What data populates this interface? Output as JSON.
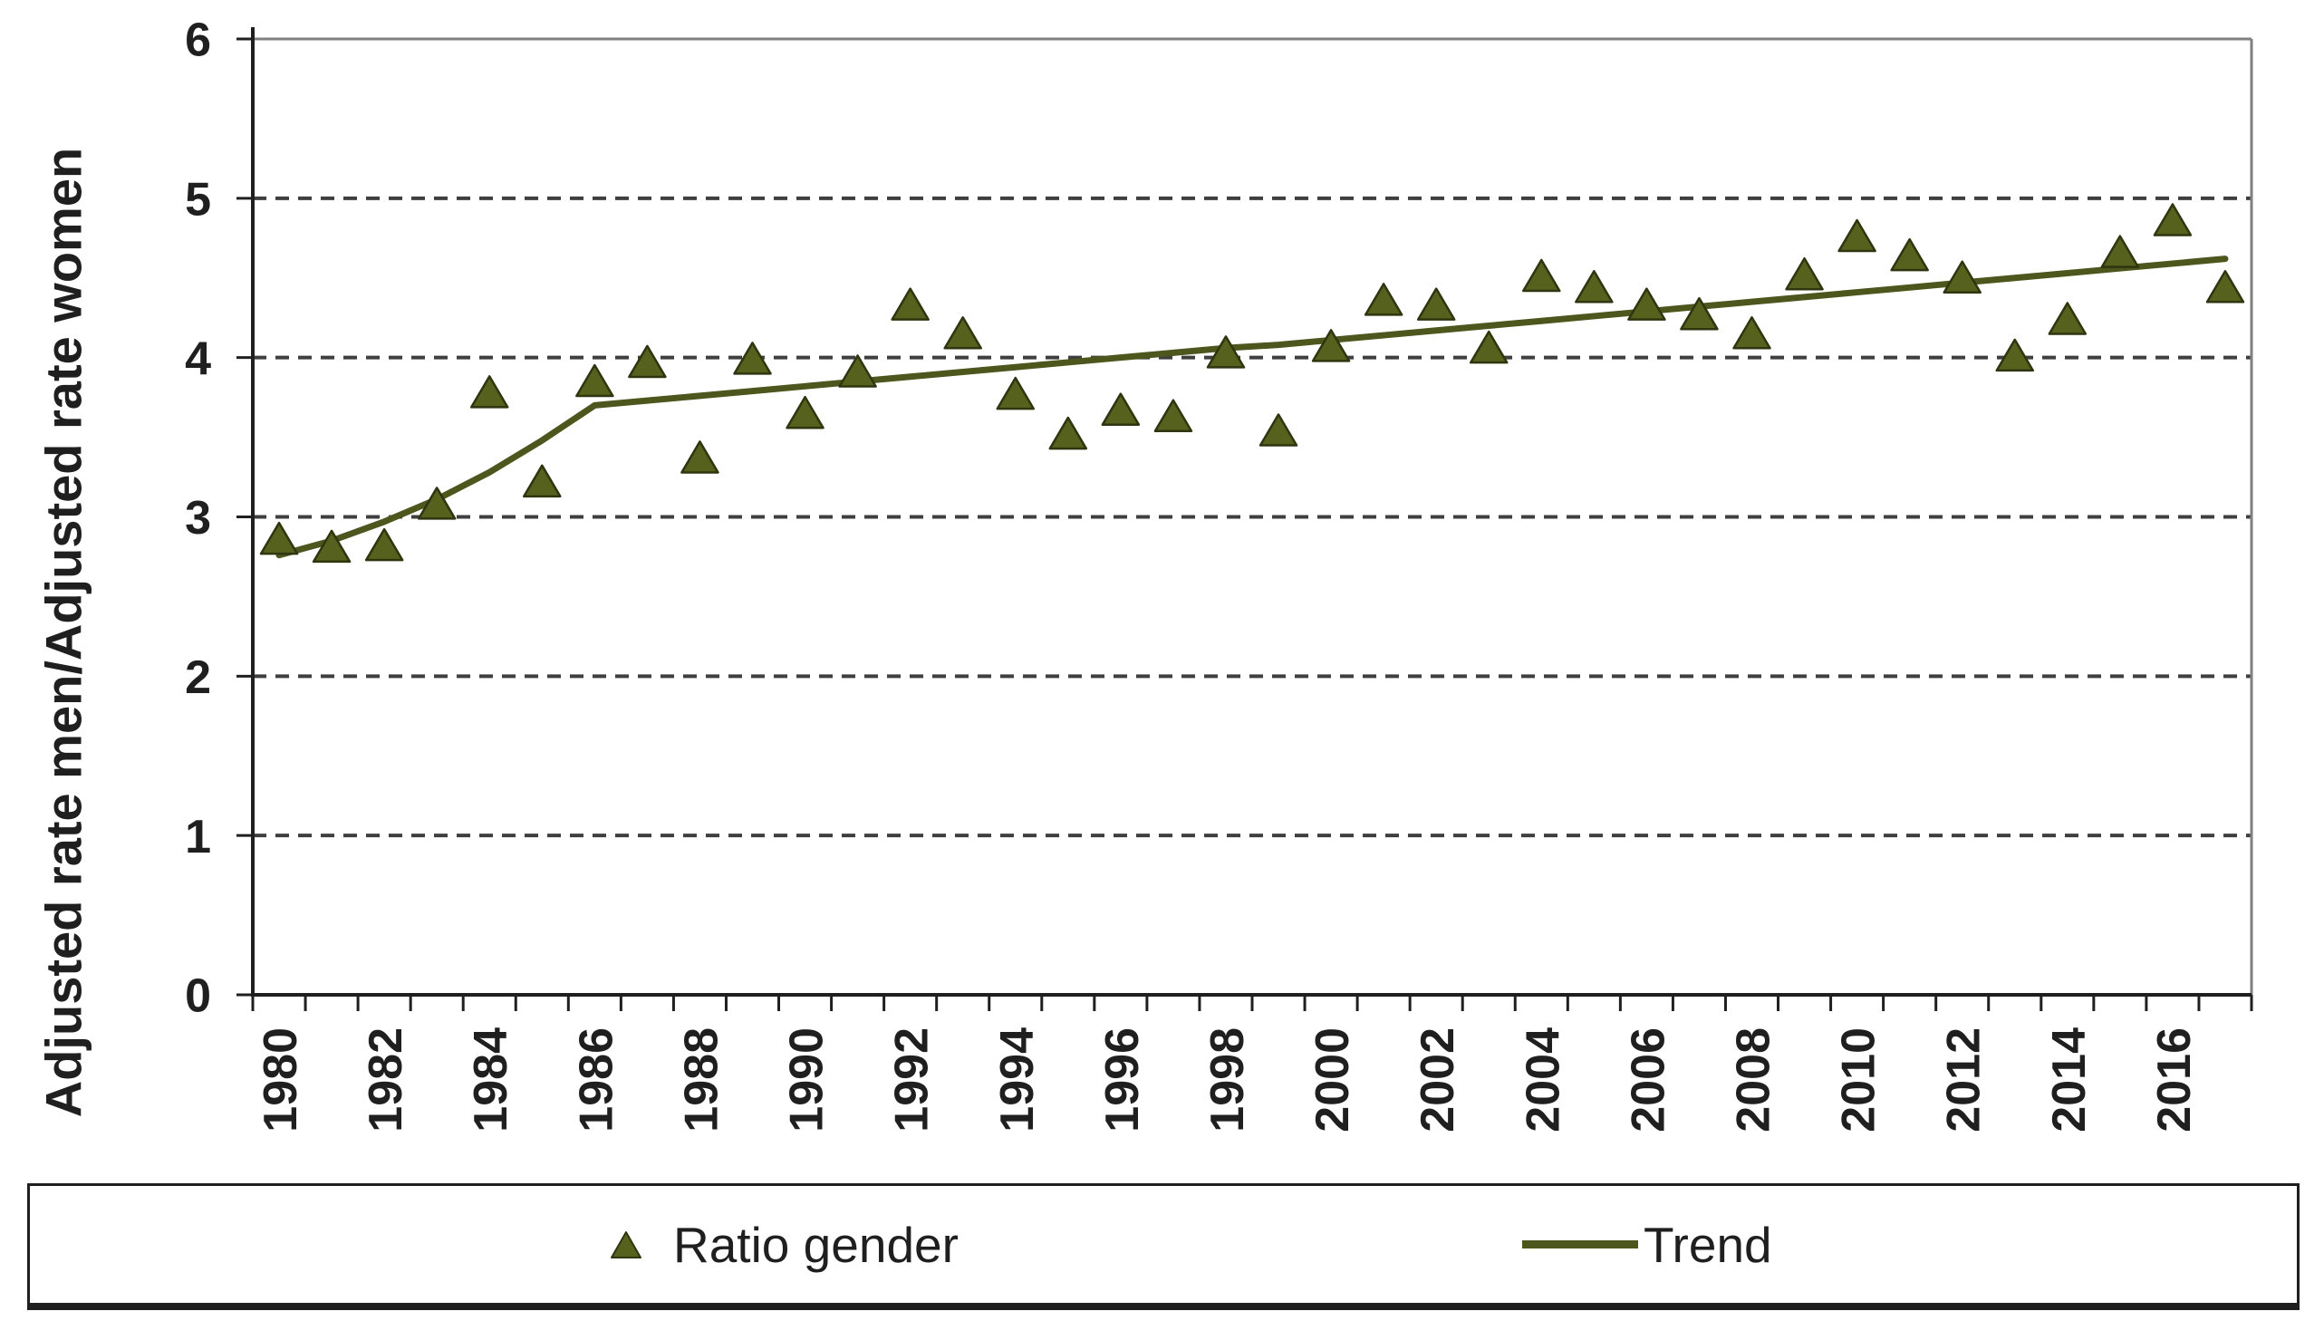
{
  "chart_data": {
    "type": "scatter",
    "title": "",
    "xlabel": "",
    "ylabel": "Adjusted rate men/Adjusted rate women",
    "ylim": [
      0,
      6
    ],
    "y_ticks": [
      0,
      1,
      2,
      3,
      4,
      5,
      6
    ],
    "grid": "horizontal-dashed-at-1-to-5",
    "legend_position": "bottom-box",
    "x": [
      1980,
      1981,
      1982,
      1983,
      1984,
      1985,
      1986,
      1987,
      1988,
      1989,
      1990,
      1991,
      1992,
      1993,
      1994,
      1995,
      1996,
      1997,
      1998,
      1999,
      2000,
      2001,
      2002,
      2003,
      2004,
      2005,
      2006,
      2007,
      2008,
      2009,
      2010,
      2011,
      2012,
      2013,
      2014,
      2015,
      2016,
      2017
    ],
    "x_tick_labels_shown": [
      "1980",
      "1982",
      "1984",
      "1986",
      "1988",
      "1990",
      "1992",
      "1994",
      "1996",
      "1998",
      "2000",
      "2002",
      "2004",
      "2006",
      "2008",
      "2010",
      "2012",
      "2014",
      "2016"
    ],
    "series": [
      {
        "name": "Ratio gender",
        "type": "scatter",
        "marker": "triangle",
        "color": "#57611e",
        "values": [
          2.86,
          2.81,
          2.82,
          3.08,
          3.78,
          3.22,
          3.85,
          3.97,
          3.37,
          3.99,
          3.65,
          3.91,
          4.33,
          4.15,
          3.77,
          3.52,
          3.67,
          3.63,
          4.03,
          3.54,
          4.07,
          4.36,
          4.33,
          4.06,
          4.51,
          4.44,
          4.33,
          4.27,
          4.15,
          4.52,
          4.76,
          4.64,
          4.5,
          4.01,
          4.24,
          4.66,
          4.86,
          4.44
        ]
      },
      {
        "name": "Trend",
        "type": "line",
        "marker": "none",
        "color": "#4c561d",
        "values": [
          2.76,
          2.85,
          2.97,
          3.11,
          3.28,
          3.48,
          3.7,
          3.73,
          3.76,
          3.79,
          3.82,
          3.85,
          3.88,
          3.91,
          3.94,
          3.97,
          4.0,
          4.03,
          4.06,
          4.08,
          4.11,
          4.14,
          4.17,
          4.2,
          4.23,
          4.26,
          4.29,
          4.32,
          4.35,
          4.38,
          4.41,
          4.44,
          4.47,
          4.5,
          4.53,
          4.56,
          4.59,
          4.62
        ]
      }
    ]
  },
  "colors": {
    "marker_fill": "#57611e",
    "marker_stroke": "#2e350f",
    "trend_line": "#4c561d",
    "axis": "#1f1f1f",
    "gridline": "#3f3f3f",
    "plot_border": "#808080",
    "text": "#1f1f1f",
    "background": "#ffffff"
  },
  "legend": {
    "items": [
      {
        "label": "Ratio gender",
        "marker": "triangle"
      },
      {
        "label": "Trend",
        "marker": "line"
      }
    ]
  }
}
